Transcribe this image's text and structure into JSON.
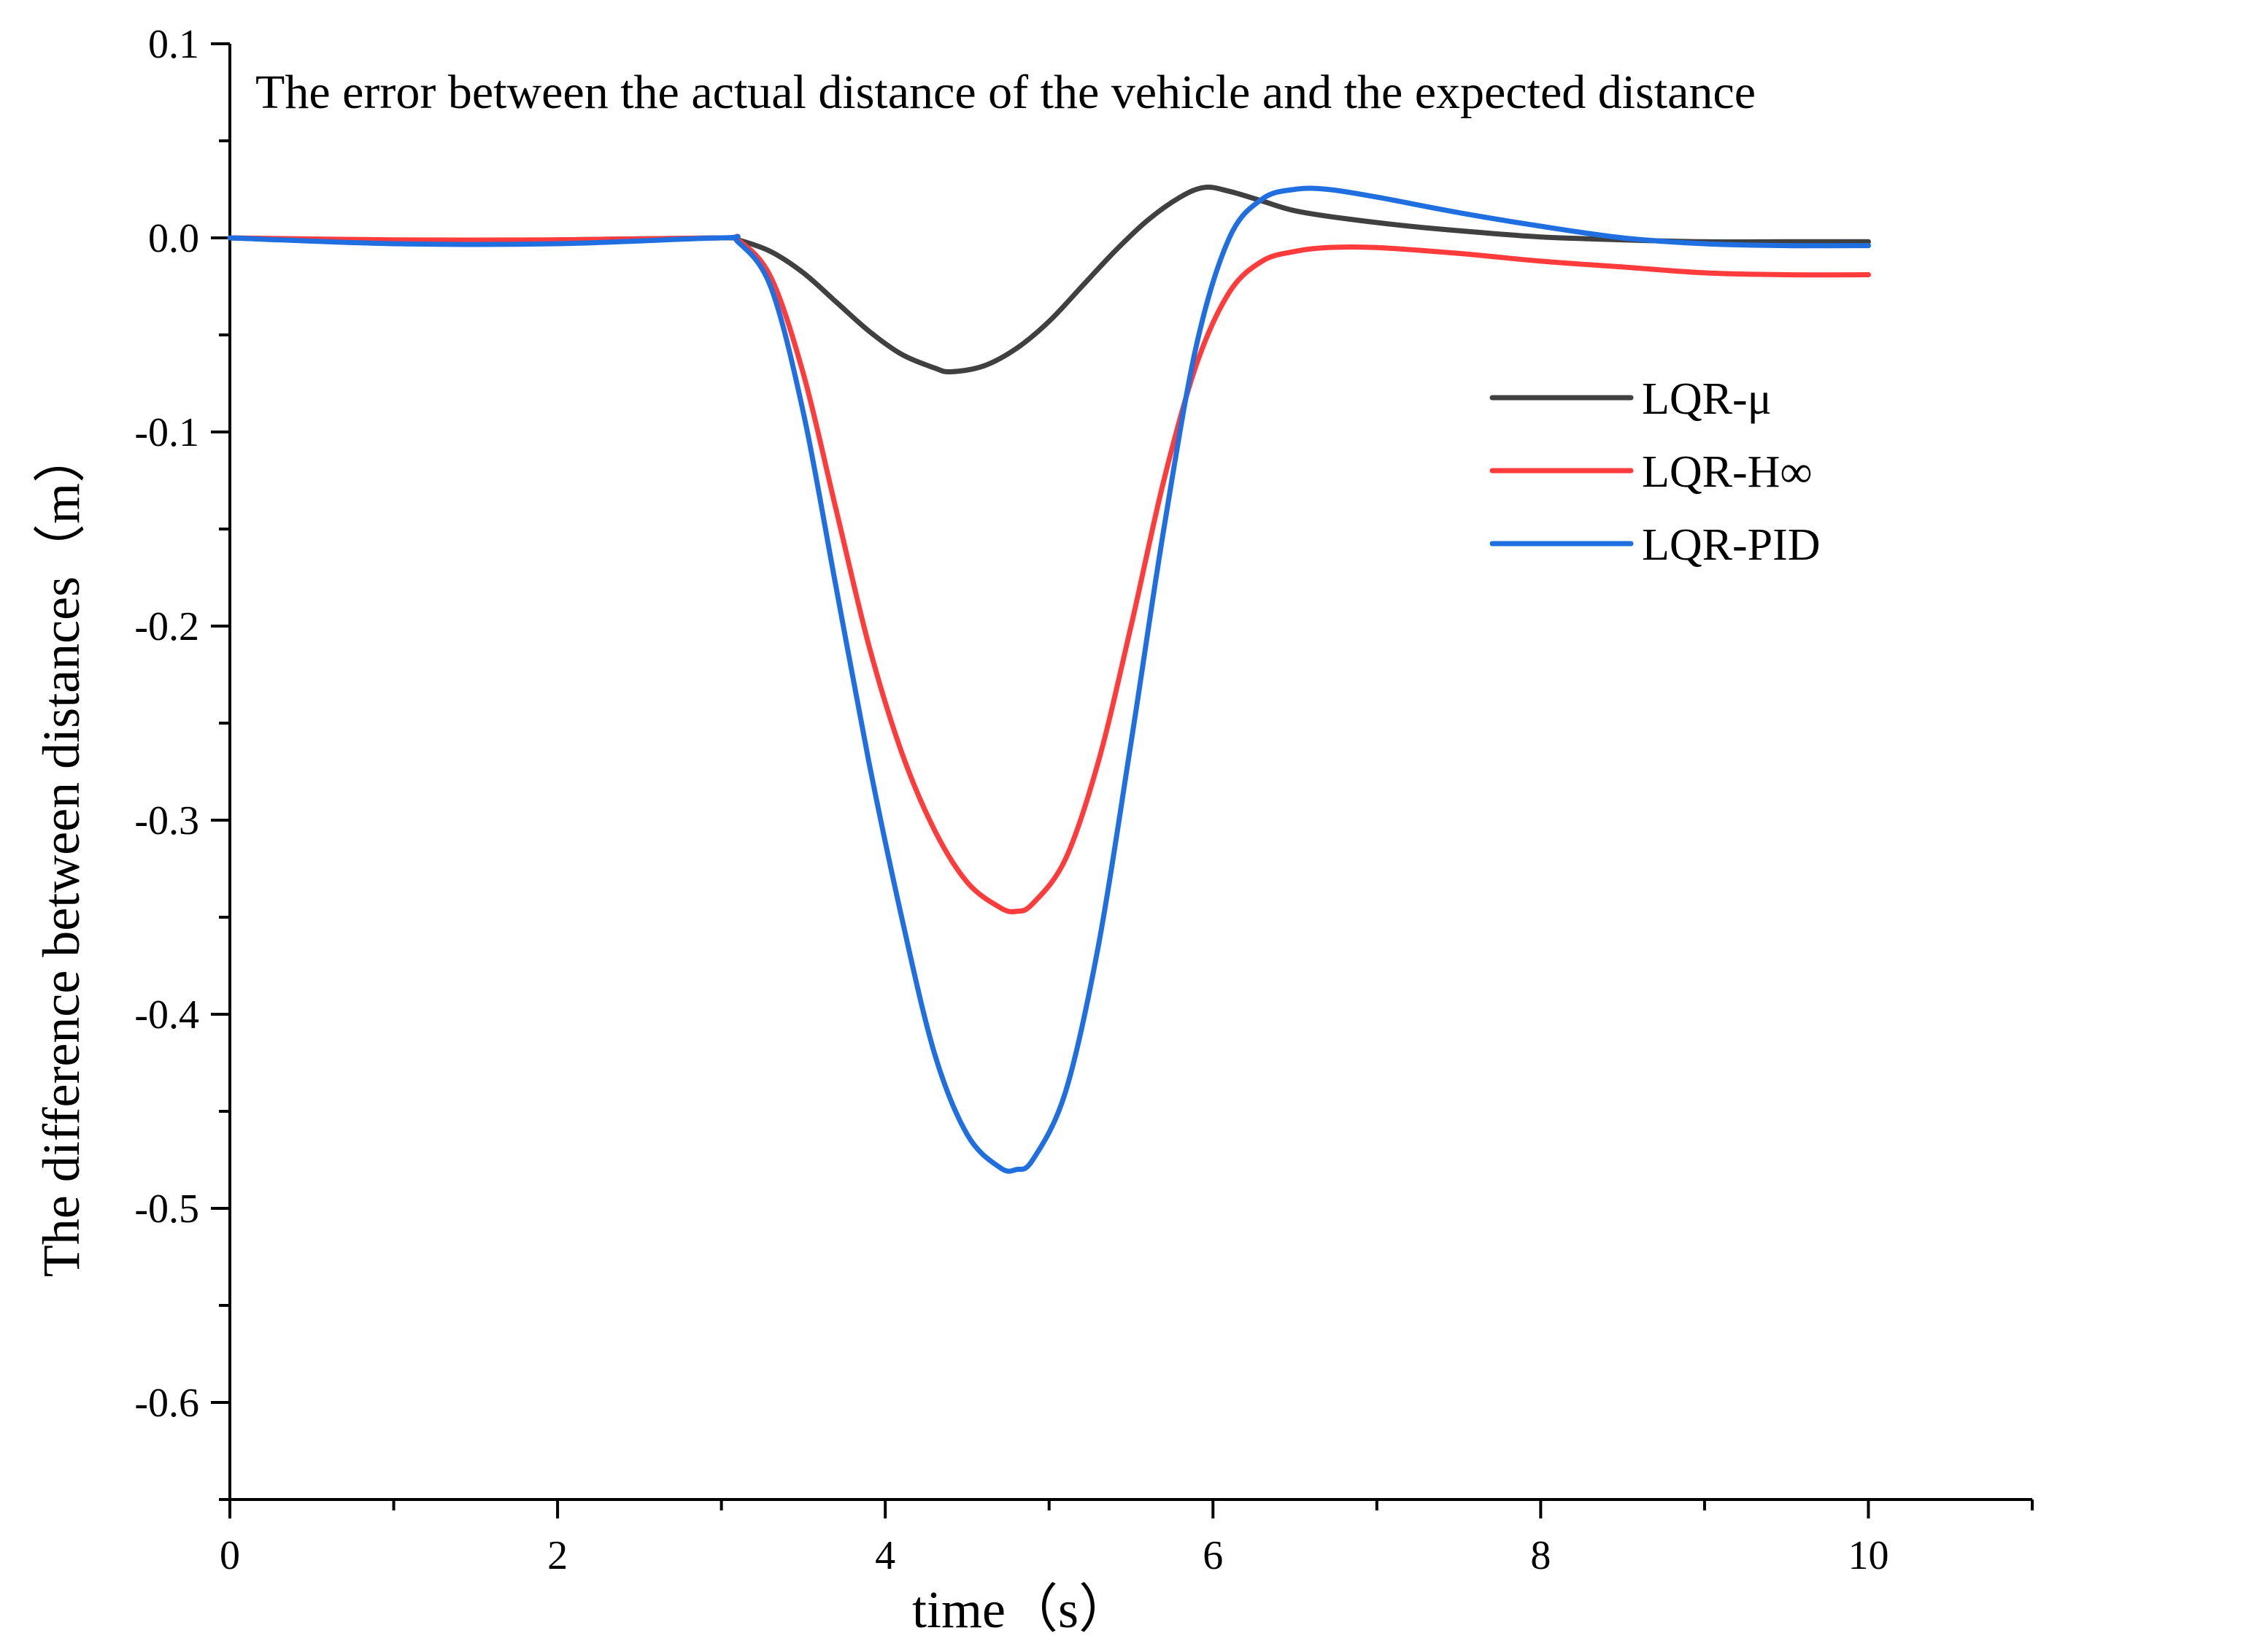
{
  "chart_data": {
    "type": "line",
    "title": "The error between the actual distance of the vehicle and the expected distance",
    "xlabel": "time（s）",
    "ylabel": "The difference between distances（m）",
    "xlim": [
      0,
      11
    ],
    "ylim": [
      -0.65,
      0.1
    ],
    "xticks": [
      0,
      2,
      4,
      6,
      8,
      10
    ],
    "xtick_labels": [
      "0",
      "2",
      "4",
      "6",
      "8",
      "10"
    ],
    "yticks": [
      0.1,
      0.0,
      -0.1,
      -0.2,
      -0.3,
      -0.4,
      -0.5,
      -0.6
    ],
    "ytick_labels": [
      "0.1",
      "0.0",
      "-0.1",
      "-0.2",
      "-0.3",
      "-0.4",
      "-0.5",
      "-0.6"
    ],
    "grid": false,
    "legend_position": "right",
    "series": [
      {
        "name": "LQR-μ",
        "color": "#404040",
        "x": [
          0,
          1,
          2,
          3,
          3.1,
          3.3,
          3.5,
          3.7,
          3.9,
          4.1,
          4.3,
          4.4,
          4.6,
          4.8,
          5.0,
          5.2,
          5.4,
          5.6,
          5.8,
          5.95,
          6.1,
          6.3,
          6.5,
          6.8,
          7.2,
          7.6,
          8.0,
          8.5,
          9.0,
          9.5,
          10.0
        ],
        "y": [
          0,
          -0.002,
          -0.001,
          0,
          -0.001,
          -0.007,
          -0.018,
          -0.033,
          -0.048,
          -0.06,
          -0.067,
          -0.069,
          -0.066,
          -0.057,
          -0.043,
          -0.025,
          -0.007,
          0.009,
          0.021,
          0.026,
          0.024,
          0.019,
          0.014,
          0.01,
          0.006,
          0.003,
          0.0005,
          -0.001,
          -0.002,
          -0.002,
          -0.002
        ]
      },
      {
        "name": "LQR-H∞",
        "color": "#ff3b3b",
        "x": [
          0,
          1,
          2,
          3,
          3.1,
          3.3,
          3.5,
          3.7,
          3.9,
          4.1,
          4.3,
          4.5,
          4.7,
          4.8,
          4.9,
          5.1,
          5.3,
          5.5,
          5.7,
          5.9,
          6.1,
          6.3,
          6.5,
          6.7,
          7.0,
          7.5,
          8.0,
          8.5,
          9.0,
          9.5,
          10.0
        ],
        "y": [
          0,
          -0.001,
          -0.001,
          0,
          -0.001,
          -0.02,
          -0.07,
          -0.14,
          -0.21,
          -0.265,
          -0.305,
          -0.332,
          -0.345,
          -0.347,
          -0.343,
          -0.32,
          -0.27,
          -0.2,
          -0.125,
          -0.065,
          -0.028,
          -0.012,
          -0.007,
          -0.005,
          -0.005,
          -0.008,
          -0.012,
          -0.015,
          -0.018,
          -0.019,
          -0.019
        ]
      },
      {
        "name": "LQR-PID",
        "color": "#1f6fe0",
        "x": [
          0,
          1,
          2,
          3,
          3.1,
          3.3,
          3.5,
          3.7,
          3.9,
          4.1,
          4.3,
          4.5,
          4.7,
          4.8,
          4.9,
          5.1,
          5.3,
          5.5,
          5.7,
          5.9,
          6.1,
          6.3,
          6.5,
          6.7,
          7.0,
          7.5,
          8.0,
          8.5,
          9.0,
          9.5,
          10.0
        ],
        "y": [
          0,
          -0.003,
          -0.003,
          0,
          -0.002,
          -0.025,
          -0.09,
          -0.18,
          -0.27,
          -0.35,
          -0.42,
          -0.462,
          -0.479,
          -0.48,
          -0.475,
          -0.44,
          -0.365,
          -0.26,
          -0.15,
          -0.055,
          0.0,
          0.02,
          0.025,
          0.025,
          0.021,
          0.013,
          0.006,
          0.0,
          -0.003,
          -0.004,
          -0.004
        ]
      }
    ]
  }
}
